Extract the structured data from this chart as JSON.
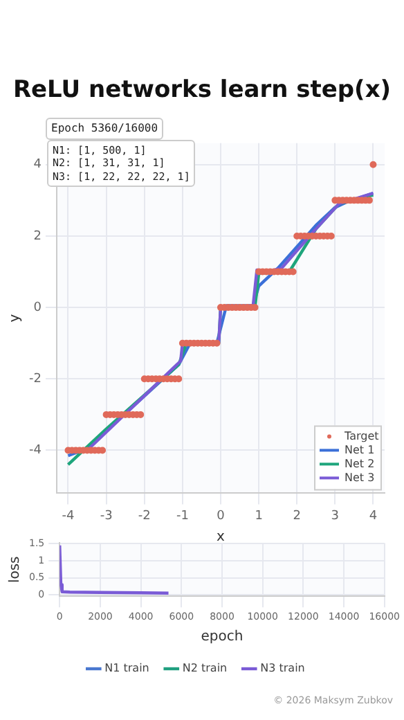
{
  "chart_data": [
    {
      "type": "line",
      "title": "ReLU networks learn step(x)",
      "xlabel": "x",
      "ylabel": "y",
      "annotations": [
        "Epoch 5360/16000",
        "N1: [1, 500, 1]",
        "N2: [1, 31, 31, 1]",
        "N3: [1, 22, 22, 22, 1]"
      ],
      "xlim": [
        -4.3,
        4.3
      ],
      "xticks": [
        -4,
        -3,
        -2,
        -1,
        0,
        1,
        2,
        3,
        4
      ],
      "ylim": [
        -5.2,
        4.6
      ],
      "yticks": [
        -4,
        -2,
        0,
        2,
        4
      ],
      "grid": true,
      "legend": "bottom right",
      "series": [
        {
          "name": "Target",
          "type": "scatter",
          "color": "#e06a5a",
          "x": [
            -4,
            -3.9,
            -3.8,
            -3.7,
            -3.6,
            -3.5,
            -3.4,
            -3.3,
            -3.2,
            -3.1,
            -3,
            -2.9,
            -2.8,
            -2.7,
            -2.6,
            -2.5,
            -2.4,
            -2.3,
            -2.2,
            -2.1,
            -2,
            -1.9,
            -1.8,
            -1.7,
            -1.6,
            -1.5,
            -1.4,
            -1.3,
            -1.2,
            -1.1,
            -1,
            -0.9,
            -0.8,
            -0.7,
            -0.6,
            -0.5,
            -0.4,
            -0.3,
            -0.2,
            -0.1,
            0,
            0.1,
            0.2,
            0.3,
            0.4,
            0.5,
            0.6,
            0.7,
            0.8,
            0.9,
            1,
            1.1,
            1.2,
            1.3,
            1.4,
            1.5,
            1.6,
            1.7,
            1.8,
            1.9,
            2,
            2.1,
            2.2,
            2.3,
            2.4,
            2.5,
            2.6,
            2.7,
            2.8,
            2.9,
            3,
            3.1,
            3.2,
            3.3,
            3.4,
            3.5,
            3.6,
            3.7,
            3.8,
            3.9,
            4
          ],
          "values": [
            -4,
            -4,
            -4,
            -4,
            -4,
            -4,
            -4,
            -4,
            -4,
            -4,
            -3,
            -3,
            -3,
            -3,
            -3,
            -3,
            -3,
            -3,
            -3,
            -3,
            -2,
            -2,
            -2,
            -2,
            -2,
            -2,
            -2,
            -2,
            -2,
            -2,
            -1,
            -1,
            -1,
            -1,
            -1,
            -1,
            -1,
            -1,
            -1,
            -1,
            0,
            0,
            0,
            0,
            0,
            0,
            0,
            0,
            0,
            0,
            1,
            1,
            1,
            1,
            1,
            1,
            1,
            1,
            1,
            1,
            2,
            2,
            2,
            2,
            2,
            2,
            2,
            2,
            2,
            2,
            3,
            3,
            3,
            3,
            3,
            3,
            3,
            3,
            3,
            3,
            4
          ]
        },
        {
          "name": "Net 1",
          "type": "line",
          "color": "#3b70d8",
          "x": [
            -4,
            -3.5,
            -1.1,
            -0.8,
            -0.1,
            0.15,
            0.85,
            1.0,
            1.5,
            2.5,
            3.0,
            3.3,
            4
          ],
          "values": [
            -4.15,
            -3.95,
            -1.6,
            -1.0,
            -1.0,
            0.05,
            0.05,
            0.6,
            1.1,
            2.3,
            2.8,
            2.95,
            3.2
          ]
        },
        {
          "name": "Net 2",
          "type": "line",
          "color": "#1ea57c",
          "x": [
            -4,
            -3,
            -1.1,
            -0.9,
            -0.05,
            0,
            0.9,
            1.0,
            1.8,
            2.5,
            3.1,
            4
          ],
          "values": [
            -4.4,
            -3.4,
            -1.6,
            -1.0,
            -1.0,
            0,
            0,
            0.95,
            1.0,
            2.2,
            2.9,
            3.15
          ]
        },
        {
          "name": "Net 3",
          "type": "line",
          "color": "#7a5bd6",
          "x": [
            -4,
            -3.5,
            -1.05,
            -1,
            -0.05,
            0,
            0.85,
            0.95,
            1.2,
            1.6,
            2.5,
            3.1,
            4
          ],
          "values": [
            -4,
            -4,
            -1.5,
            -1,
            -1,
            0,
            0.05,
            1.05,
            1.0,
            1.1,
            2.2,
            2.9,
            3.2
          ]
        }
      ]
    },
    {
      "type": "line",
      "xlabel": "epoch",
      "ylabel": "loss",
      "annotations": [
        "© 2026 Maksym Zubkov"
      ],
      "xlim": [
        0,
        16000
      ],
      "xticks": [
        0,
        2000,
        4000,
        6000,
        8000,
        10000,
        12000,
        14000,
        16000
      ],
      "ylim": [
        -0.04,
        1.52
      ],
      "yticks": [
        0.0,
        0.5,
        1.0,
        1.5
      ],
      "grid": true,
      "legend": "bottom",
      "series": [
        {
          "name": "N1 train",
          "color": "#4a78d0"
        },
        {
          "name": "N2 train",
          "color": "#20a080"
        },
        {
          "name": "N3 train",
          "color": "#7a5bd6",
          "x": [
            0,
            60,
            120,
            500,
            2000,
            4000,
            5360
          ],
          "values": [
            1.45,
            0.3,
            0.09,
            0.08,
            0.07,
            0.06,
            0.05
          ]
        }
      ]
    }
  ]
}
